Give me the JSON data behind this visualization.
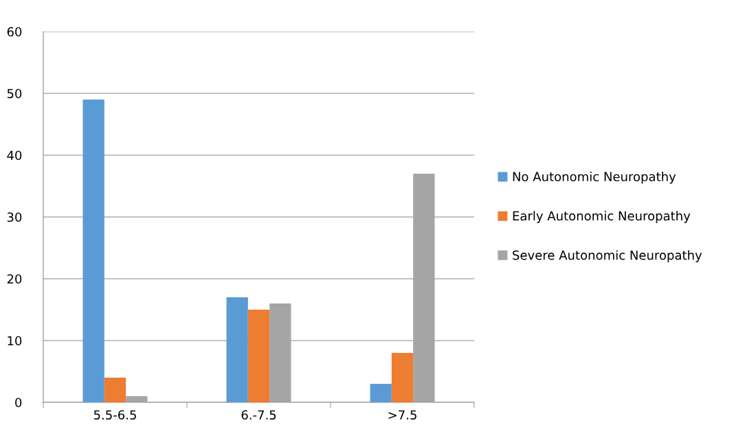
{
  "chart_data": {
    "type": "bar",
    "categories": [
      "5.5-6.5",
      "6.-7.5",
      ">7.5"
    ],
    "series": [
      {
        "name": "No Autonomic Neuropathy",
        "color": "#5b9bd5",
        "values": [
          49,
          17,
          3
        ]
      },
      {
        "name": "Early Autonomic Neuropathy",
        "color": "#ed7d31",
        "values": [
          4,
          15,
          8
        ]
      },
      {
        "name": "Severe Autonomic Neuropathy",
        "color": "#a5a5a5",
        "values": [
          1,
          16,
          37
        ]
      }
    ],
    "ylim": [
      0,
      60
    ],
    "yticks": [
      0,
      10,
      20,
      30,
      40,
      50,
      60
    ],
    "grid": "y",
    "legend": "right"
  }
}
